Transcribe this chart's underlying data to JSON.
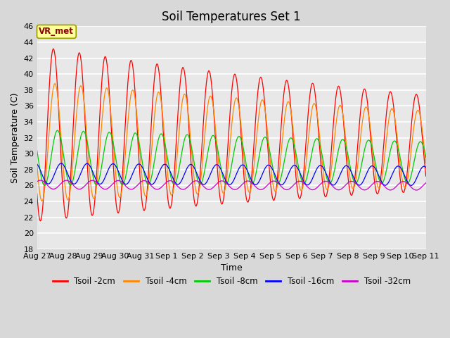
{
  "title": "Soil Temperatures Set 1",
  "ylabel": "Soil Temperature (C)",
  "xlabel": "Time",
  "ylim": [
    18,
    46
  ],
  "yticks": [
    18,
    20,
    22,
    24,
    26,
    28,
    30,
    32,
    34,
    36,
    38,
    40,
    42,
    44,
    46
  ],
  "bg_color": "#d8d8d8",
  "plot_bg_color": "#e8e8e8",
  "annotation_text": "VR_met",
  "annotation_color": "#8b0000",
  "annotation_bg": "#ffff99",
  "annotation_edge": "#999900",
  "series": [
    {
      "name": "Tsoil -2cm",
      "color": "#ff0000",
      "amp": 11.0,
      "mean": 32.5,
      "phase": 0.0,
      "amp_decay": 0.04,
      "mean_decay": -0.08
    },
    {
      "name": "Tsoil -4cm",
      "color": "#ff8800",
      "amp": 7.5,
      "mean": 31.5,
      "phase": 0.06,
      "amp_decay": 0.03,
      "mean_decay": -0.06
    },
    {
      "name": "Tsoil -8cm",
      "color": "#00cc00",
      "amp": 3.5,
      "mean": 29.5,
      "phase": 0.16,
      "amp_decay": 0.02,
      "mean_decay": -0.04
    },
    {
      "name": "Tsoil -16cm",
      "color": "#0000ff",
      "amp": 1.3,
      "mean": 27.5,
      "phase": 0.3,
      "amp_decay": 0.005,
      "mean_decay": -0.02
    },
    {
      "name": "Tsoil -32cm",
      "color": "#cc00cc",
      "amp": 0.55,
      "mean": 26.1,
      "phase": 0.5,
      "amp_decay": 0.001,
      "mean_decay": -0.01
    }
  ],
  "x_start_day": 0,
  "x_end_day": 15,
  "n_points": 1500,
  "xtick_labels": [
    "Aug 27",
    "Aug 28",
    "Aug 29",
    "Aug 30",
    "Aug 31",
    "Sep 1",
    "Sep 2",
    "Sep 3",
    "Sep 4",
    "Sep 5",
    "Sep 6",
    "Sep 7",
    "Sep 8",
    "Sep 9",
    "Sep 10",
    "Sep 11"
  ],
  "xtick_positions": [
    0,
    1,
    2,
    3,
    4,
    5,
    6,
    7,
    8,
    9,
    10,
    11,
    12,
    13,
    14,
    15
  ],
  "title_fontsize": 12,
  "label_fontsize": 9,
  "tick_fontsize": 8
}
